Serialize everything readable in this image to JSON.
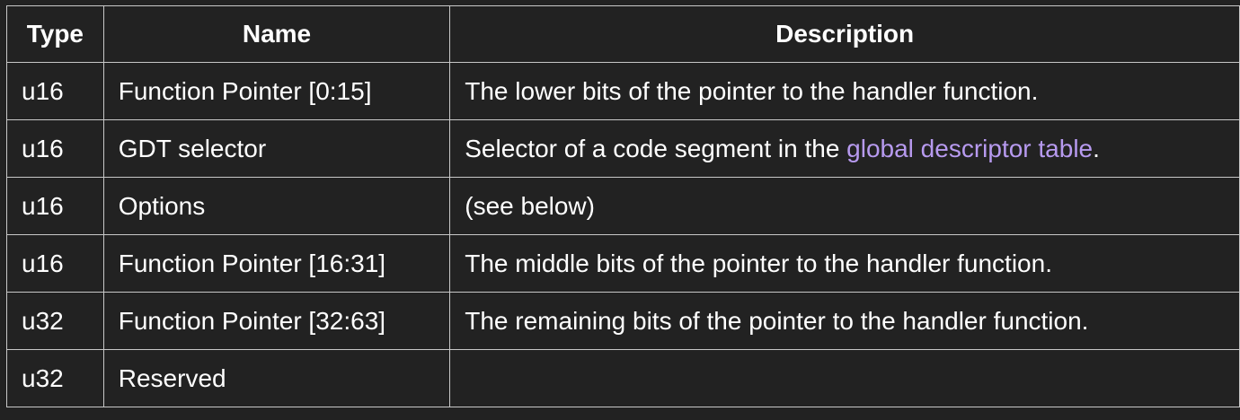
{
  "table": {
    "headers": {
      "type": "Type",
      "name": "Name",
      "description": "Description"
    },
    "rows": [
      {
        "type": "u16",
        "name": "Function Pointer [0:15]",
        "description": "The lower bits of the pointer to the handler function."
      },
      {
        "type": "u16",
        "name": "GDT selector",
        "description_prefix": "Selector of a code segment in the ",
        "description_link": "global descriptor table",
        "description_suffix": "."
      },
      {
        "type": "u16",
        "name": "Options",
        "description": "(see below)"
      },
      {
        "type": "u16",
        "name": "Function Pointer [16:31]",
        "description": "The middle bits of the pointer to the handler function."
      },
      {
        "type": "u32",
        "name": "Function Pointer [32:63]",
        "description": "The remaining bits of the pointer to the handler function."
      },
      {
        "type": "u32",
        "name": "Reserved",
        "description": ""
      }
    ]
  },
  "colors": {
    "background": "#222222",
    "text": "#ffffff",
    "border": "#c8c8c8",
    "link": "#b79aef"
  }
}
